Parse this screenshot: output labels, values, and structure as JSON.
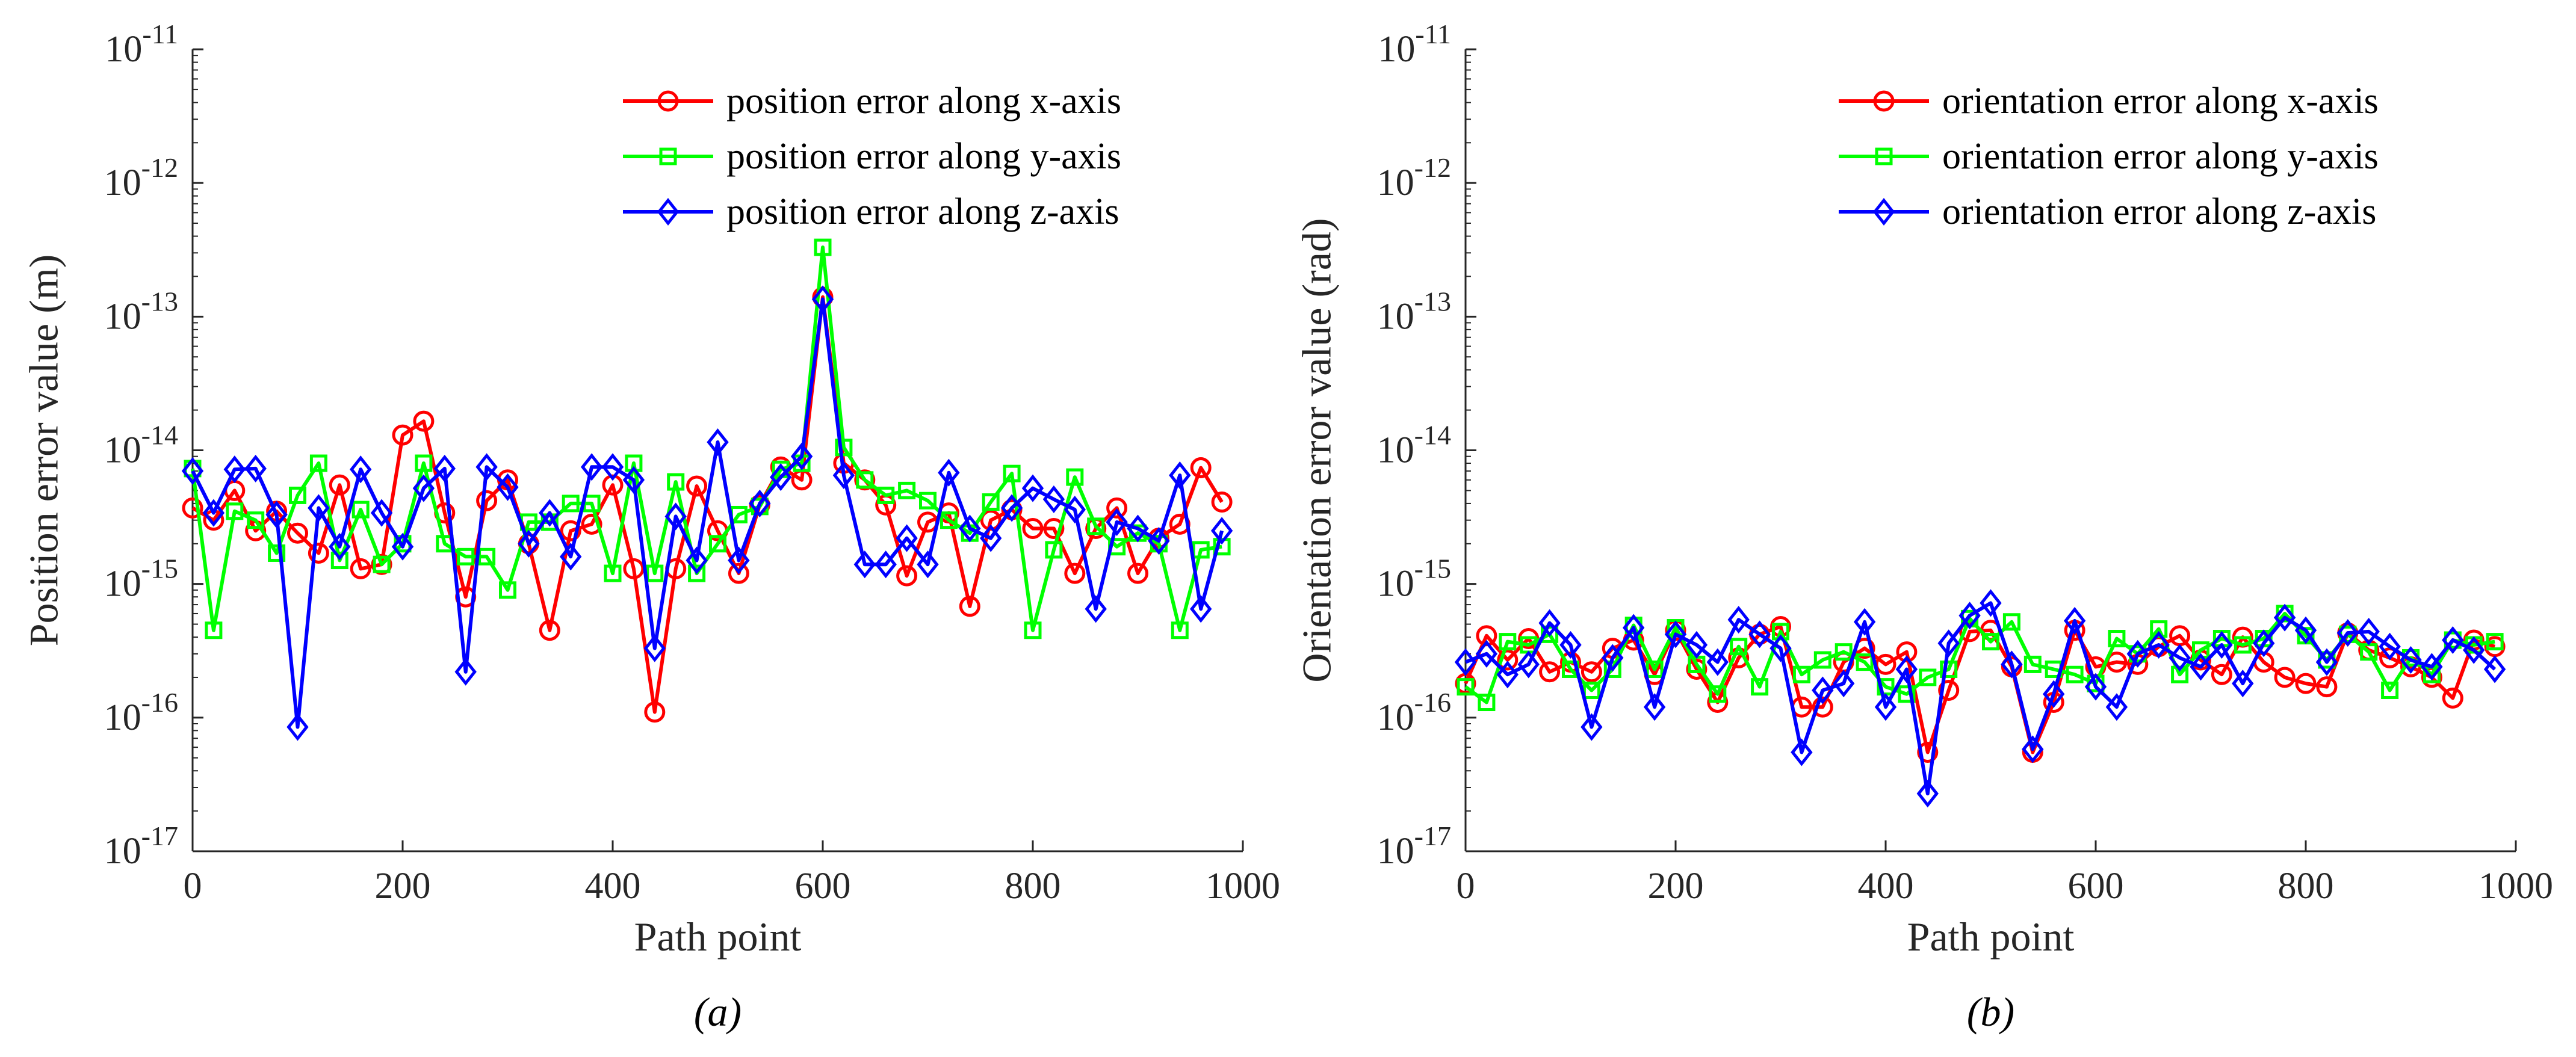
{
  "chart_data": [
    {
      "type": "line",
      "panel": "a",
      "caption": "(a)",
      "xlabel": "Path point",
      "ylabel": "Position error value (m)",
      "yscale": "log",
      "xlim": [
        0,
        1000
      ],
      "ylim_exponents": [
        -17,
        -11
      ],
      "x_ticks": [
        "0",
        "200",
        "400",
        "600",
        "800",
        "1000"
      ],
      "y_tick_base": "10",
      "y_tick_exponents": [
        "-17",
        "-16",
        "-15",
        "-14",
        "-13",
        "-12",
        "-11"
      ],
      "legend_position": "top-right",
      "x": [
        0,
        20,
        40,
        60,
        80,
        100,
        120,
        140,
        160,
        180,
        200,
        220,
        240,
        260,
        280,
        300,
        320,
        340,
        360,
        380,
        400,
        420,
        440,
        460,
        480,
        500,
        520,
        540,
        560,
        580,
        600,
        620,
        640,
        660,
        680,
        700,
        720,
        740,
        760,
        780,
        800,
        820,
        840,
        860,
        880,
        900,
        920,
        940,
        960,
        980
      ],
      "series": [
        {
          "name": "position error along x-axis",
          "color": "#ff0000",
          "marker": "circle",
          "values": [
            3.7e-15,
            3e-15,
            5e-15,
            2.5e-15,
            3.5e-15,
            2.4e-15,
            1.7e-15,
            5.5e-15,
            1.3e-15,
            1.4e-15,
            1.3e-14,
            1.65e-14,
            3.4e-15,
            8e-16,
            4.2e-15,
            6e-15,
            2e-15,
            4.5e-16,
            2.5e-15,
            2.8e-15,
            5.5e-15,
            1.3e-15,
            1.1e-16,
            1.3e-15,
            5.4e-15,
            2.5e-15,
            1.2e-15,
            3.9e-15,
            7.5e-15,
            6e-15,
            1.4e-13,
            8e-15,
            6e-15,
            3.9e-15,
            1.15e-15,
            2.9e-15,
            3.4e-15,
            6.8e-16,
            3e-15,
            3.6e-15,
            2.6e-15,
            2.6e-15,
            1.2e-15,
            2.6e-15,
            3.7e-15,
            1.2e-15,
            2.2e-15,
            2.8e-15,
            7.4e-15,
            4.1e-15
          ]
        },
        {
          "name": "position error along y-axis",
          "color": "#00ff00",
          "marker": "square",
          "values": [
            7.3e-15,
            4.5e-16,
            3.5e-15,
            3e-15,
            1.7e-15,
            4.6e-15,
            8e-15,
            1.5e-15,
            3.6e-15,
            1.4e-15,
            2e-15,
            8e-15,
            2e-15,
            1.6e-15,
            1.6e-15,
            9e-16,
            2.9e-15,
            2.9e-15,
            4e-15,
            4e-15,
            1.2e-15,
            8e-15,
            1.2e-15,
            5.8e-15,
            1.2e-15,
            2e-15,
            3.3e-15,
            3.8e-15,
            7.2e-15,
            8e-15,
            3.3e-13,
            1.05e-14,
            6e-15,
            4.6e-15,
            5e-15,
            4.2e-15,
            3e-15,
            2.4e-15,
            4.1e-15,
            6.7e-15,
            4.5e-16,
            1.8e-15,
            6.3e-15,
            2.7e-15,
            1.9e-15,
            2.4e-15,
            2e-15,
            4.5e-16,
            1.8e-15,
            1.9e-15
          ]
        },
        {
          "name": "position error along z-axis",
          "color": "#0000ff",
          "marker": "diamond",
          "values": [
            7e-15,
            3.4e-15,
            7.2e-15,
            7.3e-15,
            3.3e-15,
            8.5e-17,
            3.7e-15,
            1.9e-15,
            7.2e-15,
            3.4e-15,
            1.9e-15,
            5.2e-15,
            7.3e-15,
            2.2e-16,
            7.5e-15,
            5.3e-15,
            2e-15,
            3.4e-15,
            1.6e-15,
            7.5e-15,
            7.5e-15,
            6e-15,
            3.3e-16,
            3.2e-15,
            1.5e-15,
            1.15e-14,
            1.5e-15,
            4e-15,
            6.3e-15,
            9e-15,
            1.35e-13,
            6.5e-15,
            1.4e-15,
            1.4e-15,
            2.2e-15,
            1.4e-15,
            6.8e-15,
            2.6e-15,
            2.2e-15,
            3.7e-15,
            5.2e-15,
            4.3e-15,
            3.6e-15,
            6.5e-16,
            2.9e-15,
            2.6e-15,
            2.1e-15,
            6.5e-15,
            6.5e-16,
            2.5e-15
          ]
        }
      ]
    },
    {
      "type": "line",
      "panel": "b",
      "caption": "(b)",
      "xlabel": "Path point",
      "ylabel": "Orientation error value (rad)",
      "yscale": "log",
      "xlim": [
        0,
        1000
      ],
      "ylim_exponents": [
        -17,
        -11
      ],
      "x_ticks": [
        "0",
        "200",
        "400",
        "600",
        "800",
        "1000"
      ],
      "y_tick_base": "10",
      "y_tick_exponents": [
        "-17",
        "-16",
        "-15",
        "-14",
        "-13",
        "-12",
        "-11"
      ],
      "legend_position": "top-right",
      "x": [
        0,
        20,
        40,
        60,
        80,
        100,
        120,
        140,
        160,
        180,
        200,
        220,
        240,
        260,
        280,
        300,
        320,
        340,
        360,
        380,
        400,
        420,
        440,
        460,
        480,
        500,
        520,
        540,
        560,
        580,
        600,
        620,
        640,
        660,
        680,
        700,
        720,
        740,
        760,
        780,
        800,
        820,
        840,
        860,
        880,
        900,
        920,
        940,
        960,
        980
      ],
      "series": [
        {
          "name": "orientation error along x-axis",
          "color": "#ff0000",
          "marker": "circle",
          "values": [
            1.8e-16,
            4.1e-16,
            2.7e-16,
            3.9e-16,
            2.2e-16,
            2.6e-16,
            2.2e-16,
            3.3e-16,
            3.8e-16,
            2.1e-16,
            4.5e-16,
            2.3e-16,
            1.3e-16,
            2.8e-16,
            4.2e-16,
            4.8e-16,
            1.2e-16,
            1.2e-16,
            2.6e-16,
            3.3e-16,
            2.5e-16,
            3.1e-16,
            5.5e-17,
            1.6e-16,
            4.4e-16,
            4.5e-16,
            2.4e-16,
            5.5e-17,
            1.3e-16,
            4.5e-16,
            2.4e-16,
            2.6e-16,
            2.5e-16,
            3.4e-16,
            4.1e-16,
            2.7e-16,
            2.1e-16,
            4e-16,
            2.6e-16,
            2e-16,
            1.8e-16,
            1.7e-16,
            4.3e-16,
            3.2e-16,
            2.8e-16,
            2.4e-16,
            2e-16,
            1.4e-16,
            3.8e-16,
            3.4e-16
          ]
        },
        {
          "name": "orientation error along y-axis",
          "color": "#00ff00",
          "marker": "square",
          "values": [
            1.7e-16,
            1.3e-16,
            3.7e-16,
            3.5e-16,
            4.2e-16,
            2.3e-16,
            1.6e-16,
            2.3e-16,
            4.9e-16,
            2.3e-16,
            4.7e-16,
            2.5e-16,
            1.5e-16,
            3.4e-16,
            1.7e-16,
            4.4e-16,
            2.1e-16,
            2.7e-16,
            3.1e-16,
            2.6e-16,
            1.7e-16,
            1.5e-16,
            2e-16,
            2.3e-16,
            5.5e-16,
            3.7e-16,
            5.2e-16,
            2.5e-16,
            2.3e-16,
            2.1e-16,
            1.8e-16,
            3.9e-16,
            3e-16,
            4.6e-16,
            2.1e-16,
            3.2e-16,
            3.9e-16,
            3.5e-16,
            3.9e-16,
            6e-16,
            4.1e-16,
            2.7e-16,
            4.2e-16,
            3.1e-16,
            1.6e-16,
            2.8e-16,
            2.1e-16,
            3.8e-16,
            3.5e-16,
            3.7e-16
          ]
        },
        {
          "name": "orientation error along z-axis",
          "color": "#0000ff",
          "marker": "diamond",
          "values": [
            2.6e-16,
            3e-16,
            2.1e-16,
            2.5e-16,
            5.1e-16,
            3.5e-16,
            8.5e-17,
            2.8e-16,
            4.7e-16,
            1.2e-16,
            4.2e-16,
            3.5e-16,
            2.6e-16,
            5.4e-16,
            4.2e-16,
            3.3e-16,
            5.5e-17,
            1.6e-16,
            1.8e-16,
            5.2e-16,
            1.2e-16,
            2.3e-16,
            2.7e-17,
            3.6e-16,
            5.8e-16,
            7.2e-16,
            2.5e-16,
            5.8e-17,
            1.5e-16,
            5.3e-16,
            1.7e-16,
            1.2e-16,
            3e-16,
            3.5e-16,
            2.8e-16,
            2.4e-16,
            3.5e-16,
            1.8e-16,
            3.6e-16,
            5.6e-16,
            4.5e-16,
            2.6e-16,
            4.3e-16,
            4.4e-16,
            3.4e-16,
            2.7e-16,
            2.4e-16,
            3.8e-16,
            3.2e-16,
            2.3e-16
          ]
        }
      ]
    }
  ]
}
